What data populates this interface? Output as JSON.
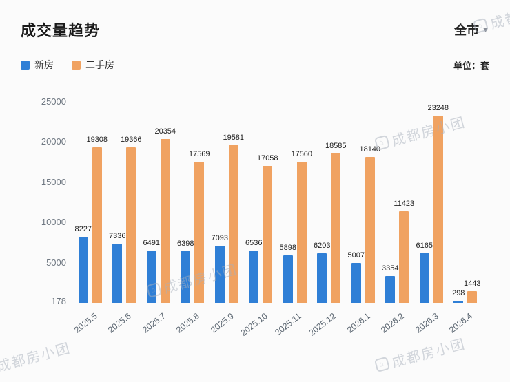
{
  "header": {
    "title": "成交量趋势",
    "region_selector": {
      "label": "全市",
      "caret": "▼"
    },
    "unit_label": "单位：套"
  },
  "legend": [
    {
      "label": "新房",
      "color": "#2f7fd6"
    },
    {
      "label": "二手房",
      "color": "#f0a261"
    }
  ],
  "watermark": {
    "text": "成都房小团",
    "icon": "house-logo"
  },
  "chart_data": {
    "type": "bar",
    "title": "成交量趋势",
    "categories": [
      "2025.5",
      "2025.6",
      "2025.7",
      "2025.8",
      "2025.9",
      "2025.10",
      "2025.11",
      "2025.12",
      "2026.1",
      "2026.2",
      "2026.3",
      "2026.4"
    ],
    "series": [
      {
        "name": "新房",
        "key": "new-home",
        "color": "#2f7fd6",
        "values": [
          8227,
          7336,
          6491,
          6398,
          7093,
          6536,
          5898,
          6203,
          5007,
          3354,
          6165,
          298
        ]
      },
      {
        "name": "二手房",
        "key": "resale",
        "color": "#f0a261",
        "values": [
          19308,
          19366,
          20354,
          17569,
          19581,
          17058,
          17560,
          18585,
          18140,
          11423,
          23248,
          1443
        ]
      }
    ],
    "ylabel": "套",
    "xlabel": "",
    "ylim": [
      0,
      25000
    ],
    "yticks": [
      25000,
      20000,
      15000,
      10000,
      5000,
      178
    ],
    "grid": false,
    "legend_position": "top-left",
    "value_labels": true
  }
}
